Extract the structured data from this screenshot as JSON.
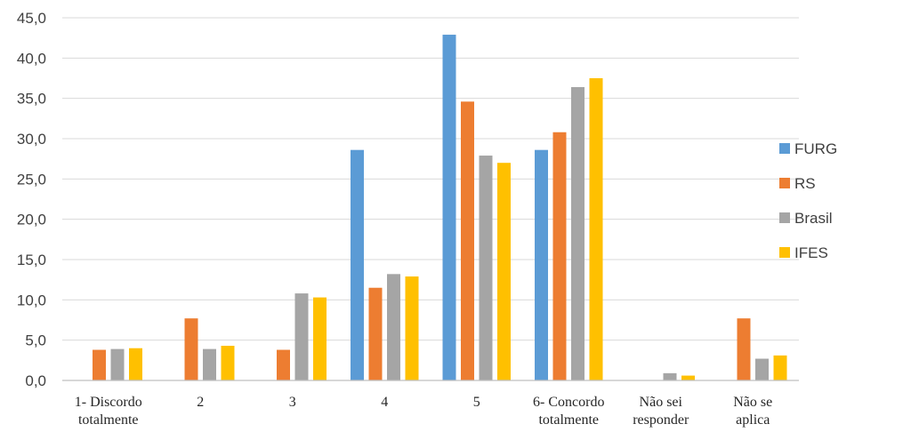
{
  "chart_data": {
    "type": "bar",
    "title": "",
    "xlabel": "",
    "ylabel": "",
    "ylim": [
      0,
      45
    ],
    "yticks": [
      "0,0",
      "5,0",
      "10,0",
      "15,0",
      "20,0",
      "25,0",
      "30,0",
      "35,0",
      "40,0",
      "45,0"
    ],
    "grid": true,
    "legend_position": "right",
    "categories": [
      [
        "1- Discordo",
        "totalmente"
      ],
      [
        "2"
      ],
      [
        "3"
      ],
      [
        "4"
      ],
      [
        "5"
      ],
      [
        "6- Concordo",
        "totalmente"
      ],
      [
        "Não sei",
        "responder"
      ],
      [
        "Não se",
        "aplica"
      ]
    ],
    "series": [
      {
        "name": "FURG",
        "color": "#5b9bd5",
        "values": [
          0,
          0,
          0,
          28.6,
          42.9,
          28.6,
          0,
          0
        ]
      },
      {
        "name": "RS",
        "color": "#ed7d31",
        "values": [
          3.8,
          7.7,
          3.8,
          11.5,
          34.6,
          30.8,
          0,
          7.7
        ]
      },
      {
        "name": "Brasil",
        "color": "#a5a5a5",
        "values": [
          3.9,
          3.9,
          10.8,
          13.2,
          27.9,
          36.4,
          0.9,
          2.7
        ]
      },
      {
        "name": "IFES",
        "color": "#ffc000",
        "values": [
          4.0,
          4.3,
          10.3,
          12.9,
          27.0,
          37.5,
          0.6,
          3.1
        ]
      }
    ]
  }
}
